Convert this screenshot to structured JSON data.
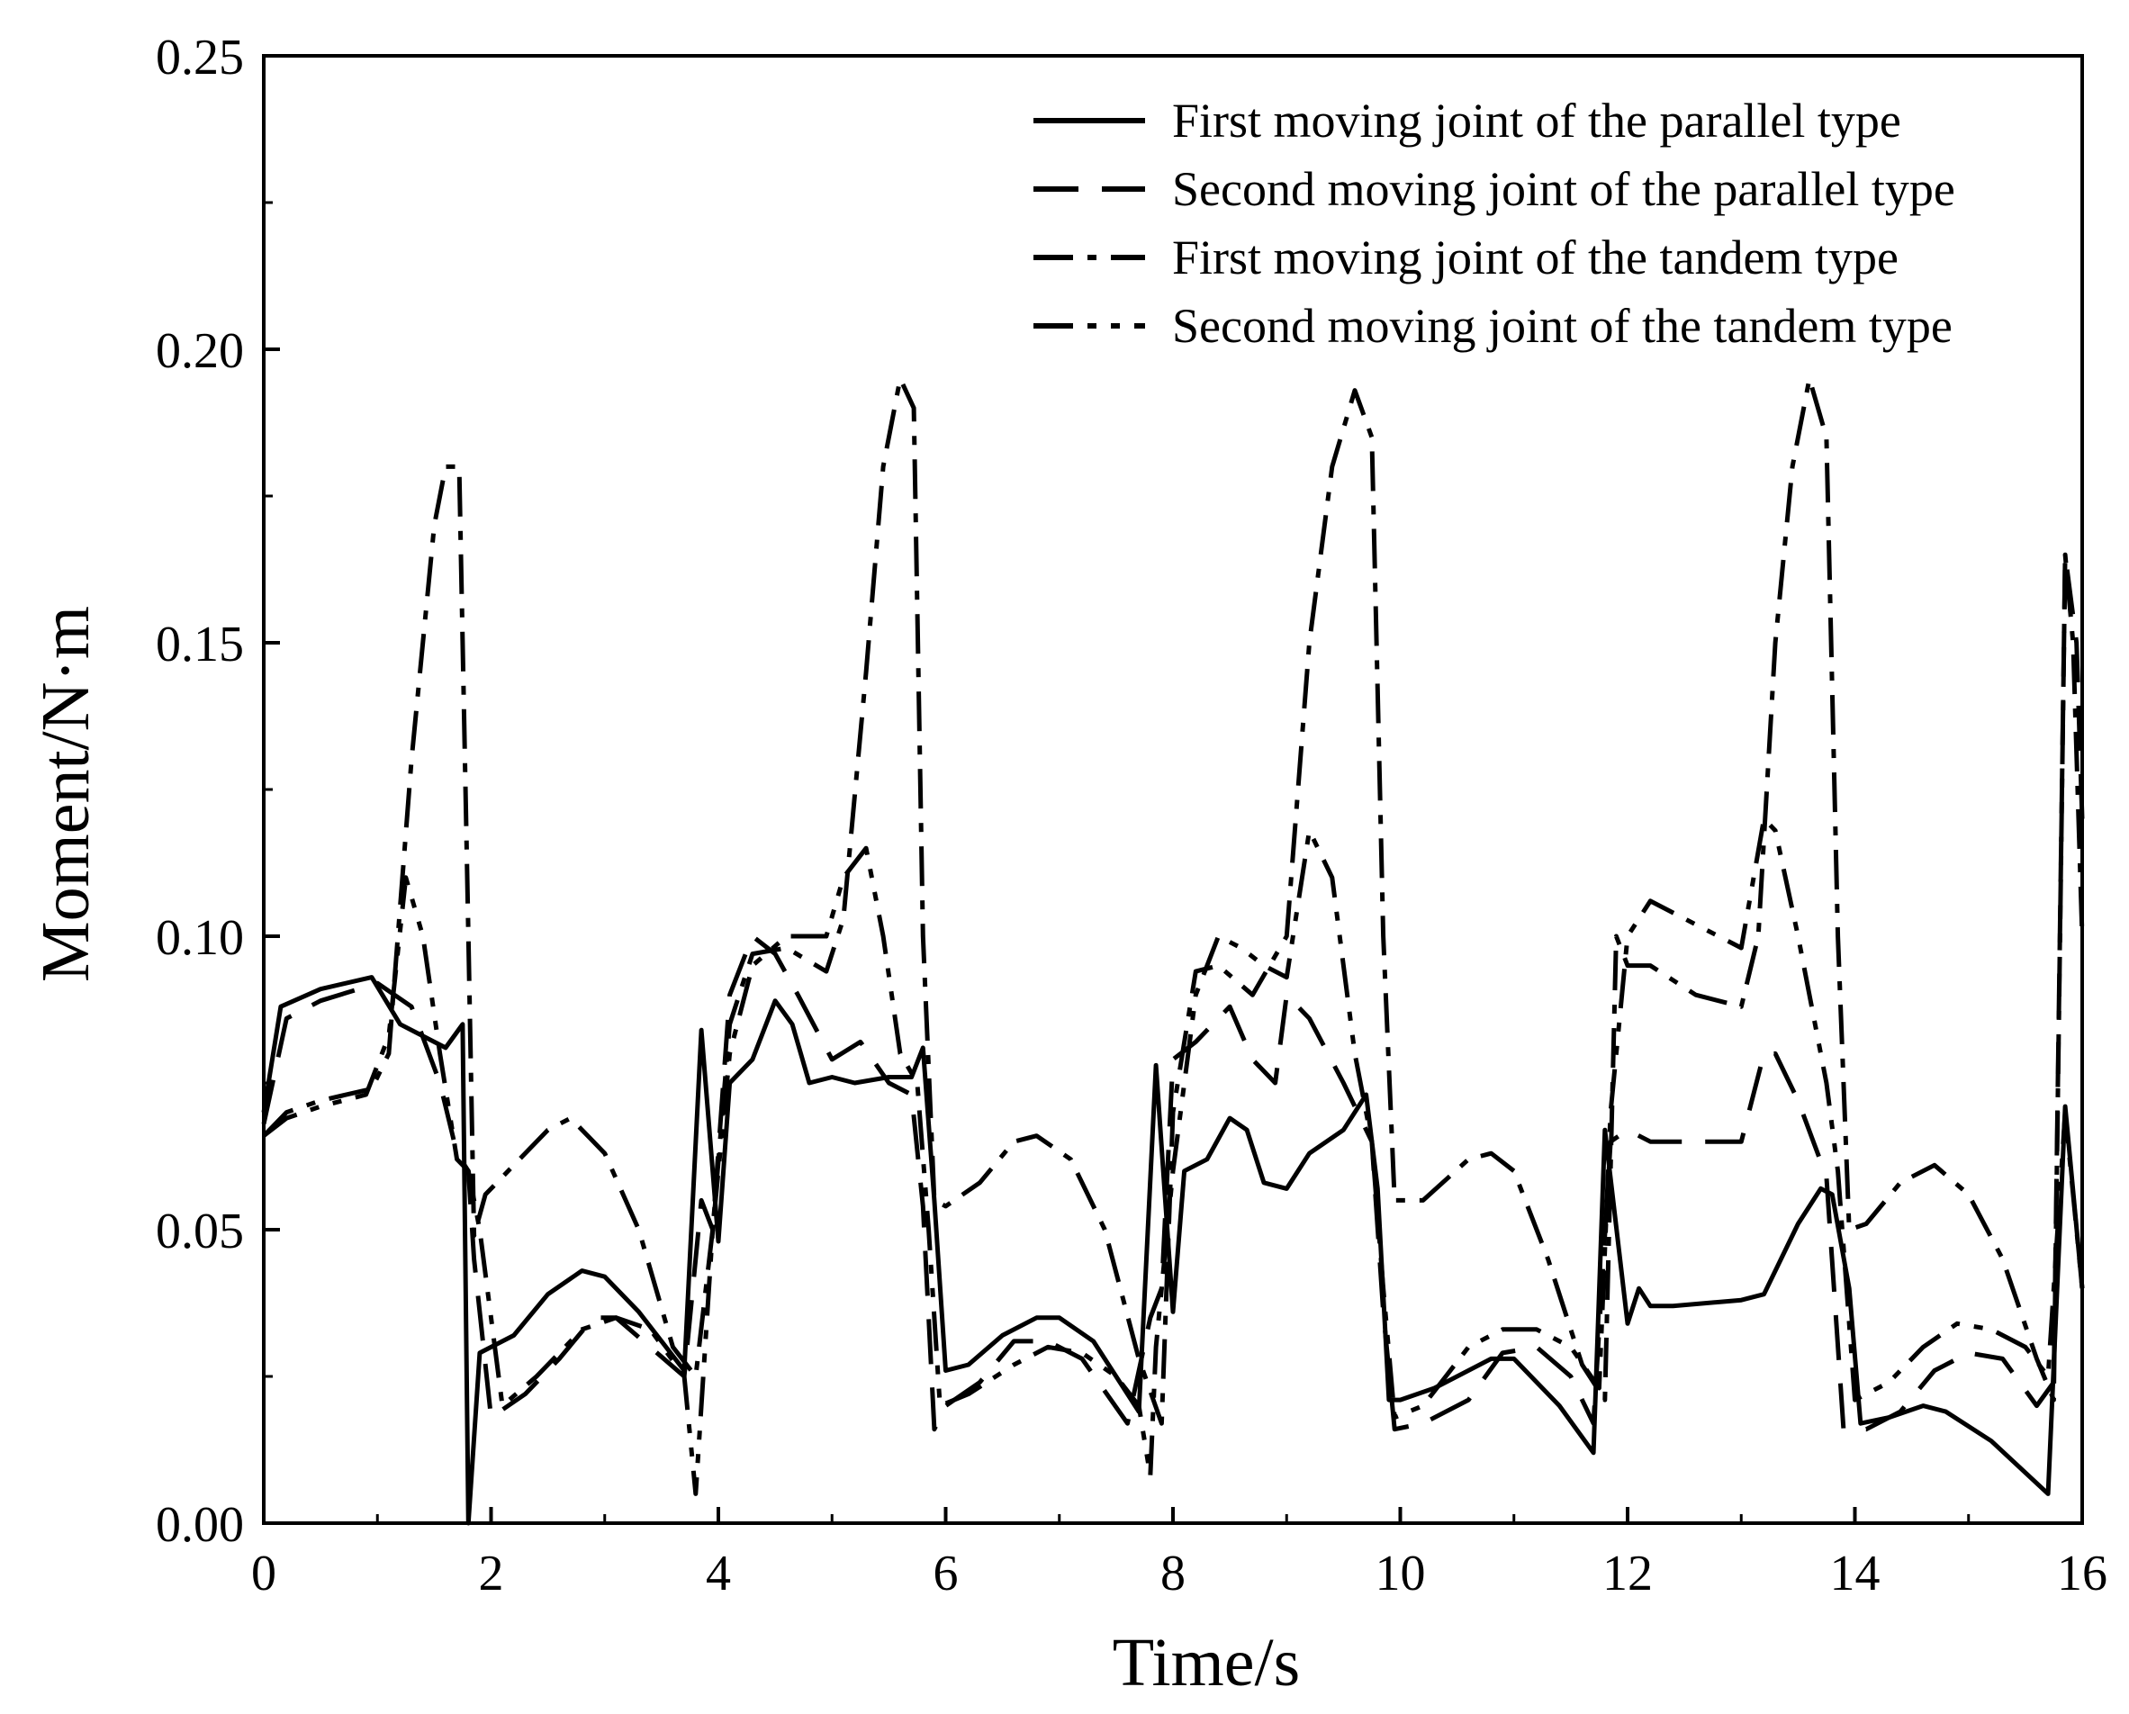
{
  "chart_data": {
    "type": "line",
    "xlabel": "Time/s",
    "ylabel": "Moment/N·m",
    "xlim": [
      0,
      16
    ],
    "ylim": [
      0,
      0.25
    ],
    "xticks": [
      0,
      2,
      4,
      6,
      8,
      10,
      12,
      14,
      16
    ],
    "xtick_labels": [
      "0",
      "2",
      "4",
      "6",
      "8",
      "10",
      "12",
      "14",
      "16"
    ],
    "yticks": [
      0,
      0.05,
      0.1,
      0.15,
      0.2,
      0.25
    ],
    "ytick_labels": [
      "0.00",
      "0.05",
      "0.10",
      "0.15",
      "0.20",
      "0.25"
    ],
    "legend_position": "top-right",
    "series": [
      {
        "name": "First moving joint of the parallel type",
        "style": "solid",
        "x": [
          0,
          0.15,
          0.5,
          0.95,
          1.2,
          1.6,
          1.75,
          1.8,
          1.9,
          2.0,
          2.2,
          2.5,
          2.8,
          3.0,
          3.3,
          3.7,
          3.85,
          4.0,
          4.1,
          4.3,
          4.5,
          4.65,
          4.8,
          5.0,
          5.2,
          5.5,
          5.7,
          5.8,
          5.9,
          6.0,
          6.2,
          6.5,
          6.8,
          7.0,
          7.3,
          7.7,
          7.85,
          8.0,
          8.1,
          8.3,
          8.5,
          8.65,
          8.8,
          9.0,
          9.2,
          9.5,
          9.7,
          9.8,
          9.9,
          10.0,
          10.3,
          10.8,
          11.0,
          11.4,
          11.7,
          11.8,
          12.0,
          12.1,
          12.2,
          12.4,
          13.0,
          13.2,
          13.5,
          13.7,
          13.8,
          13.95,
          14.05,
          14.3,
          14.6,
          14.8,
          15.2,
          15.7,
          15.85,
          16.0
        ],
        "values": [
          0.07,
          0.088,
          0.091,
          0.093,
          0.085,
          0.081,
          0.085,
          0.0,
          0.029,
          0.03,
          0.032,
          0.039,
          0.043,
          0.042,
          0.036,
          0.026,
          0.084,
          0.048,
          0.075,
          0.079,
          0.089,
          0.085,
          0.075,
          0.076,
          0.075,
          0.076,
          0.076,
          0.081,
          0.055,
          0.026,
          0.027,
          0.032,
          0.035,
          0.035,
          0.031,
          0.019,
          0.078,
          0.036,
          0.06,
          0.062,
          0.069,
          0.067,
          0.058,
          0.057,
          0.063,
          0.067,
          0.073,
          0.057,
          0.021,
          0.021,
          0.023,
          0.028,
          0.028,
          0.02,
          0.012,
          0.067,
          0.034,
          0.04,
          0.037,
          0.037,
          0.038,
          0.039,
          0.051,
          0.057,
          0.056,
          0.04,
          0.017,
          0.018,
          0.02,
          0.019,
          0.014,
          0.005,
          0.071,
          0.04
        ]
      },
      {
        "name": "Second moving joint of the parallel type",
        "style": "dashed",
        "x": [
          0,
          0.2,
          0.5,
          1.0,
          1.3,
          1.55,
          1.7,
          1.8,
          1.85,
          2.0,
          2.3,
          2.6,
          2.9,
          3.1,
          3.4,
          3.7,
          3.85,
          3.95,
          4.1,
          4.3,
          4.5,
          4.7,
          5.0,
          5.25,
          5.5,
          5.7,
          5.8,
          5.9,
          6.0,
          6.3,
          6.6,
          6.9,
          7.2,
          7.6,
          7.8,
          7.9,
          8.0,
          8.2,
          8.5,
          8.7,
          8.9,
          9.0,
          9.2,
          9.5,
          9.75,
          9.85,
          9.95,
          10.2,
          10.6,
          10.9,
          11.2,
          11.5,
          11.7,
          11.85,
          12.0,
          12.2,
          12.5,
          13.0,
          13.2,
          13.3,
          13.5,
          13.75,
          13.9,
          14.1,
          14.4,
          14.7,
          15.0,
          15.3,
          15.6,
          15.75,
          15.85,
          15.95,
          16.0
        ],
        "values": [
          0.068,
          0.086,
          0.089,
          0.092,
          0.088,
          0.075,
          0.063,
          0.06,
          0.045,
          0.018,
          0.022,
          0.028,
          0.035,
          0.035,
          0.03,
          0.025,
          0.055,
          0.05,
          0.09,
          0.1,
          0.097,
          0.09,
          0.079,
          0.082,
          0.075,
          0.073,
          0.054,
          0.016,
          0.02,
          0.024,
          0.031,
          0.031,
          0.028,
          0.017,
          0.035,
          0.04,
          0.079,
          0.082,
          0.088,
          0.079,
          0.075,
          0.09,
          0.086,
          0.075,
          0.065,
          0.036,
          0.016,
          0.017,
          0.021,
          0.029,
          0.03,
          0.025,
          0.017,
          0.065,
          0.067,
          0.065,
          0.065,
          0.065,
          0.08,
          0.08,
          0.072,
          0.059,
          0.016,
          0.016,
          0.019,
          0.026,
          0.029,
          0.028,
          0.02,
          0.024,
          0.165,
          0.15,
          0.12
        ]
      },
      {
        "name": "First moving joint of the tandem type",
        "style": "dash-dot",
        "x": [
          0,
          0.2,
          0.5,
          0.95,
          1.1,
          1.3,
          1.5,
          1.6,
          1.72,
          1.8,
          1.85,
          1.95,
          2.2,
          2.5,
          2.7,
          3.0,
          3.3,
          3.6,
          3.8,
          3.95,
          4.1,
          4.3,
          4.6,
          4.95,
          5.1,
          5.3,
          5.45,
          5.6,
          5.72,
          5.8,
          5.9,
          6.0,
          6.3,
          6.6,
          6.8,
          7.1,
          7.4,
          7.7,
          7.9,
          8.0,
          8.2,
          8.4,
          8.7,
          9.0,
          9.2,
          9.4,
          9.6,
          9.75,
          9.85,
          9.95,
          10.2,
          10.6,
          10.8,
          11.0,
          11.3,
          11.6,
          11.8,
          11.9,
          12.0,
          12.2,
          12.6,
          13.0,
          13.15,
          13.3,
          13.45,
          13.6,
          13.75,
          13.85,
          13.95,
          14.1,
          14.4,
          14.7,
          15.0,
          15.3,
          15.6,
          15.75,
          15.85,
          15.92,
          16.0
        ],
        "values": [
          0.066,
          0.07,
          0.072,
          0.074,
          0.08,
          0.13,
          0.17,
          0.18,
          0.18,
          0.1,
          0.049,
          0.056,
          0.061,
          0.067,
          0.069,
          0.063,
          0.05,
          0.03,
          0.025,
          0.05,
          0.085,
          0.097,
          0.098,
          0.094,
          0.103,
          0.145,
          0.18,
          0.195,
          0.19,
          0.1,
          0.055,
          0.054,
          0.058,
          0.065,
          0.066,
          0.062,
          0.05,
          0.028,
          0.017,
          0.07,
          0.094,
          0.095,
          0.09,
          0.1,
          0.15,
          0.18,
          0.193,
          0.185,
          0.1,
          0.055,
          0.055,
          0.062,
          0.063,
          0.06,
          0.045,
          0.027,
          0.021,
          0.1,
          0.095,
          0.095,
          0.09,
          0.088,
          0.1,
          0.15,
          0.18,
          0.195,
          0.185,
          0.1,
          0.05,
          0.051,
          0.058,
          0.061,
          0.056,
          0.045,
          0.028,
          0.021,
          0.165,
          0.15,
          0.1
        ]
      },
      {
        "name": "Second moving joint of the tandem type",
        "style": "dash-dot-dot",
        "x": [
          0,
          0.2,
          0.5,
          0.9,
          1.1,
          1.25,
          1.4,
          1.55,
          1.7,
          1.8,
          1.9,
          2.1,
          2.4,
          2.8,
          3.1,
          3.4,
          3.7,
          3.8,
          3.85,
          3.95,
          4.1,
          4.3,
          4.6,
          4.95,
          5.1,
          5.3,
          5.45,
          5.6,
          5.75,
          5.85,
          5.95,
          6.2,
          6.6,
          6.9,
          7.2,
          7.5,
          7.7,
          7.8,
          7.85,
          8.0,
          8.2,
          8.4,
          8.6,
          8.8,
          9.0,
          9.2,
          9.4,
          9.6,
          9.75,
          9.85,
          9.95,
          10.2,
          10.6,
          10.9,
          11.2,
          11.5,
          11.75,
          11.85,
          12.0,
          12.2,
          12.6,
          13.0,
          13.2,
          13.3,
          13.5,
          13.75,
          13.85,
          14.0,
          14.3,
          14.6,
          14.9,
          15.2,
          15.5,
          15.7,
          15.85,
          15.95,
          16.0
        ],
        "values": [
          0.066,
          0.069,
          0.071,
          0.073,
          0.083,
          0.11,
          0.1,
          0.08,
          0.062,
          0.06,
          0.05,
          0.02,
          0.025,
          0.033,
          0.035,
          0.033,
          0.025,
          0.005,
          0.02,
          0.05,
          0.08,
          0.095,
          0.1,
          0.1,
          0.11,
          0.115,
          0.1,
          0.08,
          0.075,
          0.05,
          0.02,
          0.022,
          0.027,
          0.03,
          0.029,
          0.025,
          0.02,
          0.008,
          0.03,
          0.06,
          0.09,
          0.1,
          0.098,
          0.095,
          0.093,
          0.118,
          0.11,
          0.08,
          0.065,
          0.04,
          0.018,
          0.02,
          0.03,
          0.033,
          0.033,
          0.03,
          0.023,
          0.07,
          0.1,
          0.106,
          0.102,
          0.098,
          0.12,
          0.118,
          0.1,
          0.075,
          0.06,
          0.021,
          0.024,
          0.03,
          0.034,
          0.033,
          0.03,
          0.025,
          0.07,
          0.05,
          0.04
        ]
      }
    ]
  }
}
